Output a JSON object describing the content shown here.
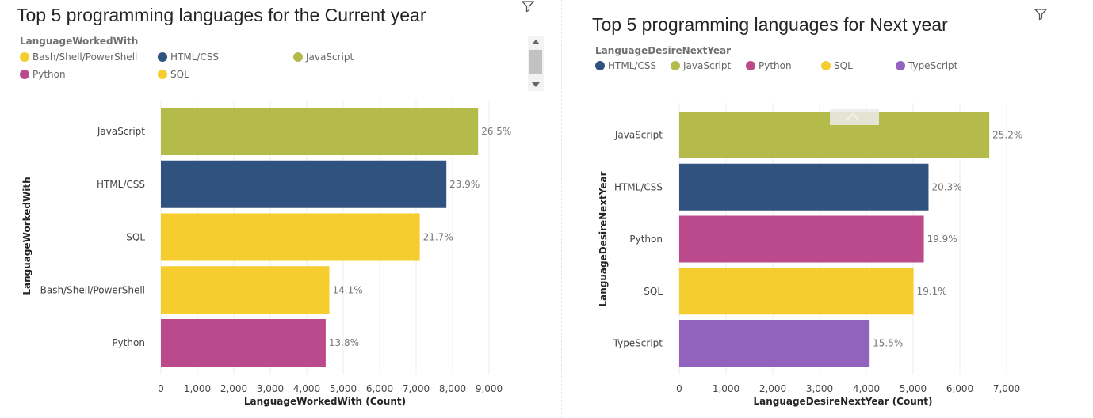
{
  "chart_data": [
    {
      "type": "bar",
      "orientation": "horizontal",
      "title": "Top 5 programming languages for the Current year",
      "legend_title": "LanguageWorkedWith",
      "legend": [
        {
          "name": "Bash/Shell/PowerShell",
          "color": "#F5CD2F"
        },
        {
          "name": "HTML/CSS",
          "color": "#30527E"
        },
        {
          "name": "JavaScript",
          "color": "#B5BB4A"
        },
        {
          "name": "Python",
          "color": "#BB4A8C"
        },
        {
          "name": "SQL",
          "color": "#F5CD2F"
        }
      ],
      "legend_placement": "top-left",
      "categories": [
        "JavaScript",
        "HTML/CSS",
        "SQL",
        "Bash/Shell/PowerShell",
        "Python"
      ],
      "values": [
        8700,
        7830,
        7100,
        4620,
        4520
      ],
      "data_labels": [
        "26.5%",
        "23.9%",
        "21.7%",
        "14.1%",
        "13.8%"
      ],
      "colors": [
        "#B5BB4A",
        "#30527E",
        "#F5CD2F",
        "#F5CD2F",
        "#BB4A8C"
      ],
      "xlabel": "LanguageWorkedWith (Count)",
      "ylabel": "LanguageWorkedWith",
      "xlim": [
        0,
        9000
      ],
      "xticks": [
        0,
        1000,
        2000,
        3000,
        4000,
        5000,
        6000,
        7000,
        8000,
        9000
      ],
      "xtick_labels": [
        "0",
        "1,000",
        "2,000",
        "3,000",
        "4,000",
        "5,000",
        "6,000",
        "7,000",
        "8,000",
        "9,000"
      ],
      "grid": true
    },
    {
      "type": "bar",
      "orientation": "horizontal",
      "title": "Top 5 programming languages for Next year",
      "legend_title": "LanguageDesireNextYear",
      "legend": [
        {
          "name": "HTML/CSS",
          "color": "#30527E"
        },
        {
          "name": "JavaScript",
          "color": "#B5BB4A"
        },
        {
          "name": "Python",
          "color": "#BB4A8C"
        },
        {
          "name": "SQL",
          "color": "#F5CD2F"
        },
        {
          "name": "TypeScript",
          "color": "#9163BE"
        }
      ],
      "legend_placement": "top-left",
      "categories": [
        "JavaScript",
        "HTML/CSS",
        "Python",
        "SQL",
        "TypeScript"
      ],
      "values": [
        6630,
        5330,
        5230,
        5010,
        4070
      ],
      "data_labels": [
        "25.2%",
        "20.3%",
        "19.9%",
        "19.1%",
        "15.5%"
      ],
      "colors": [
        "#B5BB4A",
        "#30527E",
        "#BB4A8C",
        "#F5CD2F",
        "#9163BE"
      ],
      "xlabel": "LanguageDesireNextYear (Count)",
      "ylabel": "LanguageDesireNextYear",
      "xlim": [
        0,
        7000
      ],
      "xticks": [
        0,
        1000,
        2000,
        3000,
        4000,
        5000,
        6000,
        7000
      ],
      "xtick_labels": [
        "0",
        "1,000",
        "2,000",
        "3,000",
        "4,000",
        "5,000",
        "6,000",
        "7,000"
      ],
      "grid": true
    }
  ],
  "icons": {
    "filter": "filter-icon",
    "collapse": "chevron-up-icon",
    "scroll_up": "scroll-up-arrow-icon",
    "scroll_down": "scroll-down-arrow-icon"
  }
}
